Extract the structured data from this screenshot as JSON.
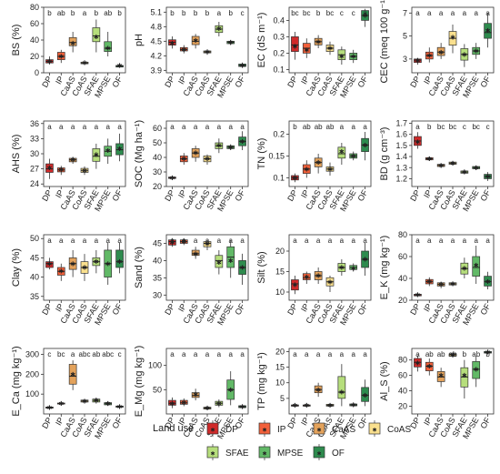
{
  "categories": [
    "DP",
    "IP",
    "CaAS",
    "CoAS",
    "SFAE",
    "MPSE",
    "OF"
  ],
  "colors": {
    "DP": "#cf2a2a",
    "IP": "#f2603a",
    "CaAS": "#e3a25b",
    "CoAS": "#fae08e",
    "SFAE": "#b6de7c",
    "MPSE": "#62b967",
    "OF": "#2e8b4e"
  },
  "legend": {
    "title": "Land use",
    "labels": [
      "DP",
      "IP",
      "CaAS",
      "CoAS",
      "SFAE",
      "MPSE",
      "OF"
    ]
  },
  "chart_data": [
    {
      "type": "box",
      "ylabel": "BS (%)",
      "ylim": [
        0,
        80
      ],
      "ticks": [
        0,
        20,
        40,
        60,
        80
      ],
      "letters": [
        "b",
        "ab",
        "b",
        "a",
        "b",
        "ab",
        "b"
      ],
      "boxes": [
        [
          10,
          12,
          14,
          16,
          20
        ],
        [
          12,
          16,
          20,
          25,
          28
        ],
        [
          25,
          33,
          37,
          43,
          50
        ],
        [
          10,
          11,
          12,
          13,
          15
        ],
        [
          25,
          38,
          45,
          55,
          65
        ],
        [
          20,
          26,
          30,
          38,
          50
        ],
        [
          6,
          7,
          8,
          9,
          11
        ]
      ],
      "means": [
        14,
        20,
        36,
        12,
        44,
        30,
        9
      ]
    },
    {
      "type": "box",
      "ylabel": "pH",
      "ylim": [
        3.85,
        5.2
      ],
      "ticks": [
        3.9,
        4.2,
        4.5,
        4.8,
        5.1
      ],
      "letters": [
        "b",
        "b",
        "b",
        "b",
        "a",
        "b",
        "c"
      ],
      "boxes": [
        [
          4.35,
          4.42,
          4.48,
          4.53,
          4.6
        ],
        [
          4.25,
          4.3,
          4.33,
          4.37,
          4.42
        ],
        [
          4.35,
          4.43,
          4.5,
          4.6,
          4.65
        ],
        [
          4.22,
          4.26,
          4.28,
          4.3,
          4.33
        ],
        [
          4.6,
          4.68,
          4.75,
          4.82,
          4.9
        ],
        [
          4.42,
          4.45,
          4.48,
          4.5,
          4.52
        ],
        [
          3.95,
          3.98,
          4.0,
          4.03,
          4.06
        ]
      ],
      "means": [
        4.46,
        4.33,
        4.52,
        4.28,
        4.76,
        4.48,
        4.0
      ]
    },
    {
      "type": "box",
      "ylabel": "EC (dS m⁻¹)",
      "ylim": [
        0.08,
        0.48
      ],
      "ticks": [
        0.1,
        0.2,
        0.3,
        0.4
      ],
      "letters": [
        "bc",
        "bc",
        "b",
        "bc",
        "c",
        "c",
        "a"
      ],
      "boxes": [
        [
          0.16,
          0.21,
          0.25,
          0.3,
          0.33
        ],
        [
          0.17,
          0.2,
          0.23,
          0.26,
          0.29
        ],
        [
          0.23,
          0.25,
          0.27,
          0.29,
          0.31
        ],
        [
          0.19,
          0.21,
          0.23,
          0.25,
          0.27
        ],
        [
          0.13,
          0.16,
          0.19,
          0.22,
          0.24
        ],
        [
          0.14,
          0.16,
          0.18,
          0.2,
          0.22
        ],
        [
          0.36,
          0.4,
          0.43,
          0.46,
          0.47
        ]
      ],
      "means": [
        0.24,
        0.22,
        0.27,
        0.23,
        0.18,
        0.18,
        0.43
      ]
    },
    {
      "type": "box",
      "ylabel": "CEC (meq 100 g⁻¹)",
      "ylim": [
        1.8,
        7.5
      ],
      "ticks": [
        3,
        5,
        7
      ],
      "letters": [
        "a",
        "a",
        "a",
        "a",
        "a",
        "a",
        "a"
      ],
      "boxes": [
        [
          2.5,
          2.7,
          2.9,
          3.0,
          3.1
        ],
        [
          2.7,
          3.0,
          3.3,
          3.6,
          4.0
        ],
        [
          3.0,
          3.3,
          3.6,
          4.0,
          4.4
        ],
        [
          3.5,
          4.2,
          4.8,
          5.4,
          6.0
        ],
        [
          2.3,
          2.9,
          3.4,
          3.9,
          4.3
        ],
        [
          3.0,
          3.4,
          3.7,
          4.0,
          4.4
        ],
        [
          4.0,
          4.8,
          5.3,
          6.1,
          7.0
        ]
      ],
      "means": [
        2.85,
        3.3,
        3.6,
        4.9,
        3.4,
        3.7,
        5.5
      ]
    },
    {
      "type": "box",
      "ylabel": "AHS (%)",
      "ylim": [
        23.5,
        36.5
      ],
      "ticks": [
        24,
        27,
        30,
        33,
        36
      ],
      "letters": [
        "a",
        "a",
        "a",
        "a",
        "a",
        "a",
        "a"
      ],
      "boxes": [
        [
          25,
          26.3,
          27,
          28,
          29
        ],
        [
          25.8,
          26.4,
          26.8,
          27.2,
          27.6
        ],
        [
          28,
          28.4,
          28.8,
          29.1,
          29.4
        ],
        [
          25.8,
          26.3,
          26.7,
          27.1,
          27.5
        ],
        [
          27,
          28.5,
          29.5,
          31,
          32
        ],
        [
          28,
          29.5,
          30.5,
          31.5,
          33
        ],
        [
          28.5,
          29.8,
          30.8,
          32,
          34
        ]
      ],
      "means": [
        27.2,
        26.8,
        28.8,
        26.7,
        29.8,
        30.6,
        31
      ]
    },
    {
      "type": "box",
      "ylabel": "SOC (Mg ha⁻¹)",
      "ylim": [
        20,
        65
      ],
      "ticks": [
        20,
        30,
        40,
        50,
        60
      ],
      "letters": [
        "a",
        "a",
        "a",
        "a",
        "a",
        "a",
        "a"
      ],
      "boxes": [
        [
          25,
          25.5,
          26,
          26.5,
          27
        ],
        [
          35,
          37,
          39,
          41,
          43
        ],
        [
          37,
          40,
          43,
          46,
          48
        ],
        [
          35,
          37,
          39,
          41,
          42
        ],
        [
          43,
          46,
          48,
          50,
          53
        ],
        [
          45,
          46,
          47,
          48,
          49
        ],
        [
          45,
          48,
          51,
          54,
          58
        ]
      ],
      "means": [
        26,
        39,
        43,
        39,
        48,
        47,
        51
      ]
    },
    {
      "type": "box",
      "ylabel": "TN (%)",
      "ylim": [
        0.08,
        0.23
      ],
      "ticks": [
        0.1,
        0.15,
        0.2
      ],
      "letters": [
        "b",
        "ab",
        "ab",
        "ab",
        "a",
        "a",
        "a"
      ],
      "boxes": [
        [
          0.09,
          0.095,
          0.1,
          0.105,
          0.11
        ],
        [
          0.1,
          0.11,
          0.12,
          0.13,
          0.14
        ],
        [
          0.11,
          0.125,
          0.135,
          0.145,
          0.155
        ],
        [
          0.105,
          0.115,
          0.12,
          0.125,
          0.135
        ],
        [
          0.13,
          0.145,
          0.155,
          0.17,
          0.18
        ],
        [
          0.14,
          0.145,
          0.15,
          0.155,
          0.16
        ],
        [
          0.14,
          0.16,
          0.175,
          0.19,
          0.205
        ]
      ],
      "means": [
        0.1,
        0.12,
        0.135,
        0.12,
        0.16,
        0.15,
        0.175
      ]
    },
    {
      "type": "box",
      "ylabel": "BD (g cm⁻³)",
      "ylim": [
        1.13,
        1.72
      ],
      "ticks": [
        1.2,
        1.3,
        1.4,
        1.5,
        1.6,
        1.7
      ],
      "letters": [
        "a",
        "b",
        "bc",
        "bc",
        "c",
        "bc",
        "c"
      ],
      "boxes": [
        [
          1.47,
          1.5,
          1.54,
          1.58,
          1.62
        ],
        [
          1.36,
          1.37,
          1.38,
          1.39,
          1.4
        ],
        [
          1.3,
          1.31,
          1.32,
          1.33,
          1.34
        ],
        [
          1.32,
          1.33,
          1.34,
          1.35,
          1.36
        ],
        [
          1.24,
          1.25,
          1.26,
          1.27,
          1.28
        ],
        [
          1.28,
          1.29,
          1.3,
          1.31,
          1.32
        ],
        [
          1.18,
          1.2,
          1.22,
          1.24,
          1.26
        ]
      ],
      "means": [
        1.53,
        1.38,
        1.32,
        1.34,
        1.26,
        1.3,
        1.22
      ]
    },
    {
      "type": "box",
      "ylabel": "Clay (%)",
      "ylim": [
        34,
        51
      ],
      "ticks": [
        35,
        40,
        45,
        50
      ],
      "letters": [
        "a",
        "a",
        "a",
        "a",
        "a",
        "a",
        "a"
      ],
      "boxes": [
        [
          42,
          42.5,
          43.5,
          44,
          45
        ],
        [
          39,
          40.5,
          41.5,
          42.5,
          43.5
        ],
        [
          40,
          42,
          43.5,
          45,
          47
        ],
        [
          39,
          41,
          42.5,
          44,
          46
        ],
        [
          41,
          43,
          44,
          45,
          47
        ],
        [
          38,
          40,
          43.5,
          47,
          49
        ],
        [
          41,
          42.5,
          44,
          47,
          49
        ]
      ],
      "means": [
        43.5,
        41.5,
        43.5,
        42.5,
        44,
        43.5,
        44
      ]
    },
    {
      "type": "box",
      "ylabel": "Sand (%)",
      "ylim": [
        28.5,
        47.5
      ],
      "ticks": [
        30,
        35,
        40,
        45
      ],
      "letters": [
        "a",
        "a",
        "a",
        "a",
        "a",
        "a",
        "a"
      ],
      "boxes": [
        [
          44,
          44.5,
          45.5,
          46,
          46.5
        ],
        [
          44.5,
          45,
          45.5,
          46,
          46.5
        ],
        [
          40.5,
          41.5,
          42,
          43,
          44
        ],
        [
          43,
          44,
          45,
          45.5,
          46
        ],
        [
          36,
          38,
          40,
          41.5,
          43
        ],
        [
          35,
          38,
          41,
          44,
          46
        ],
        [
          33,
          36,
          38,
          40,
          42
        ]
      ],
      "means": [
        45.2,
        45.5,
        42,
        44.8,
        39.5,
        40,
        38
      ]
    },
    {
      "type": "box",
      "ylabel": "Silt (%)",
      "ylim": [
        8,
        24
      ],
      "ticks": [
        10,
        15,
        20
      ],
      "letters": [
        "a",
        "a",
        "a",
        "a",
        "a",
        "a",
        "a"
      ],
      "boxes": [
        [
          9.5,
          10.5,
          12,
          13,
          14
        ],
        [
          12,
          13,
          13.5,
          14.5,
          15
        ],
        [
          12,
          13,
          14,
          15,
          16
        ],
        [
          10,
          11.5,
          12.5,
          13.5,
          14
        ],
        [
          14,
          15,
          16,
          17,
          18
        ],
        [
          15,
          15.5,
          16,
          16.5,
          17
        ],
        [
          14,
          16,
          18,
          20,
          22
        ]
      ],
      "means": [
        11.8,
        13.7,
        14,
        12.5,
        16,
        15.8,
        18
      ]
    },
    {
      "type": "box",
      "ylabel": "E_K (mg kg⁻¹)",
      "ylim": [
        20,
        80
      ],
      "ticks": [
        20,
        40,
        60,
        80
      ],
      "letters": [
        "a",
        "a",
        "a",
        "a",
        "a",
        "a",
        "a"
      ],
      "boxes": [
        [
          23,
          24,
          25,
          25.5,
          26
        ],
        [
          33,
          35,
          37,
          39,
          41
        ],
        [
          31,
          33,
          34.5,
          36,
          37
        ],
        [
          33,
          34,
          35,
          36,
          37
        ],
        [
          40,
          44,
          49,
          54,
          59
        ],
        [
          35,
          42,
          50,
          60,
          70
        ],
        [
          30,
          33,
          37,
          42,
          46
        ]
      ],
      "means": [
        25,
        37,
        34.5,
        35,
        49,
        52,
        37
      ]
    },
    {
      "type": "box",
      "ylabel": "E_Ca (mg kg⁻¹)",
      "ylim": [
        0,
        330
      ],
      "ticks": [
        100,
        200,
        300
      ],
      "letters": [
        "c",
        "bc",
        "a",
        "abc",
        "ab",
        "abc",
        "c"
      ],
      "boxes": [
        [
          25,
          29,
          32,
          35,
          38
        ],
        [
          45,
          50,
          52,
          55,
          58
        ],
        [
          120,
          150,
          190,
          250,
          270
        ],
        [
          55,
          60,
          65,
          70,
          75
        ],
        [
          52,
          60,
          68,
          75,
          82
        ],
        [
          40,
          46,
          52,
          57,
          62
        ],
        [
          30,
          34,
          37,
          40,
          44
        ]
      ],
      "means": [
        32,
        52,
        200,
        65,
        68,
        52,
        37
      ]
    },
    {
      "type": "box",
      "ylabel": "E_Mg (mg kg⁻¹)",
      "ylim": [
        0,
        135
      ],
      "ticks": [
        50,
        100
      ],
      "letters": [
        "a",
        "a",
        "a",
        "a",
        "a",
        "a",
        "a"
      ],
      "boxes": [
        [
          12,
          18,
          22,
          28,
          34
        ],
        [
          16,
          20,
          23,
          28,
          32
        ],
        [
          28,
          34,
          38,
          44,
          52
        ],
        [
          8,
          10,
          12,
          14,
          16
        ],
        [
          14,
          18,
          22,
          26,
          30
        ],
        [
          18,
          30,
          50,
          70,
          88
        ],
        [
          10,
          13,
          15,
          17,
          20
        ]
      ],
      "means": [
        22,
        23,
        40,
        12,
        22,
        50,
        15
      ]
    },
    {
      "type": "box",
      "ylabel": "TP (mg kg⁻¹)",
      "ylim": [
        0,
        21
      ],
      "ticks": [
        5,
        10,
        15,
        20
      ],
      "letters": [
        "a",
        "a",
        "a",
        "a",
        "a",
        "a",
        "a"
      ],
      "boxes": [
        [
          2.2,
          2.5,
          2.7,
          2.9,
          3.1
        ],
        [
          2.2,
          2.5,
          2.7,
          2.9,
          3.1
        ],
        [
          5.5,
          6.8,
          7.8,
          9,
          10
        ],
        [
          2.2,
          2.5,
          2.8,
          3.1,
          3.4
        ],
        [
          2.5,
          5,
          7,
          12,
          16
        ],
        [
          2.3,
          2.6,
          2.9,
          3.2,
          3.5
        ],
        [
          2.5,
          4,
          6,
          8.5,
          11
        ]
      ],
      "means": [
        2.7,
        2.7,
        7.8,
        2.8,
        7,
        2.9,
        6
      ]
    },
    {
      "type": "box",
      "ylabel": "Al_S (%)",
      "ylim": [
        10,
        95
      ],
      "ticks": [
        20,
        40,
        60,
        80
      ],
      "letters": [
        "a",
        "ab",
        "ab",
        "ab",
        "b",
        "ab",
        "b"
      ],
      "boxes": [
        [
          65,
          71,
          77,
          82,
          86
        ],
        [
          60,
          66,
          72,
          77,
          82
        ],
        [
          45,
          52,
          58,
          65,
          70
        ],
        [
          83,
          85,
          87,
          88,
          89
        ],
        [
          30,
          45,
          58,
          70,
          80
        ],
        [
          45,
          56,
          68,
          78,
          85
        ],
        [
          88,
          89,
          90,
          91,
          92
        ]
      ],
      "means": [
        76,
        72,
        60,
        87,
        60,
        68,
        90
      ]
    }
  ]
}
